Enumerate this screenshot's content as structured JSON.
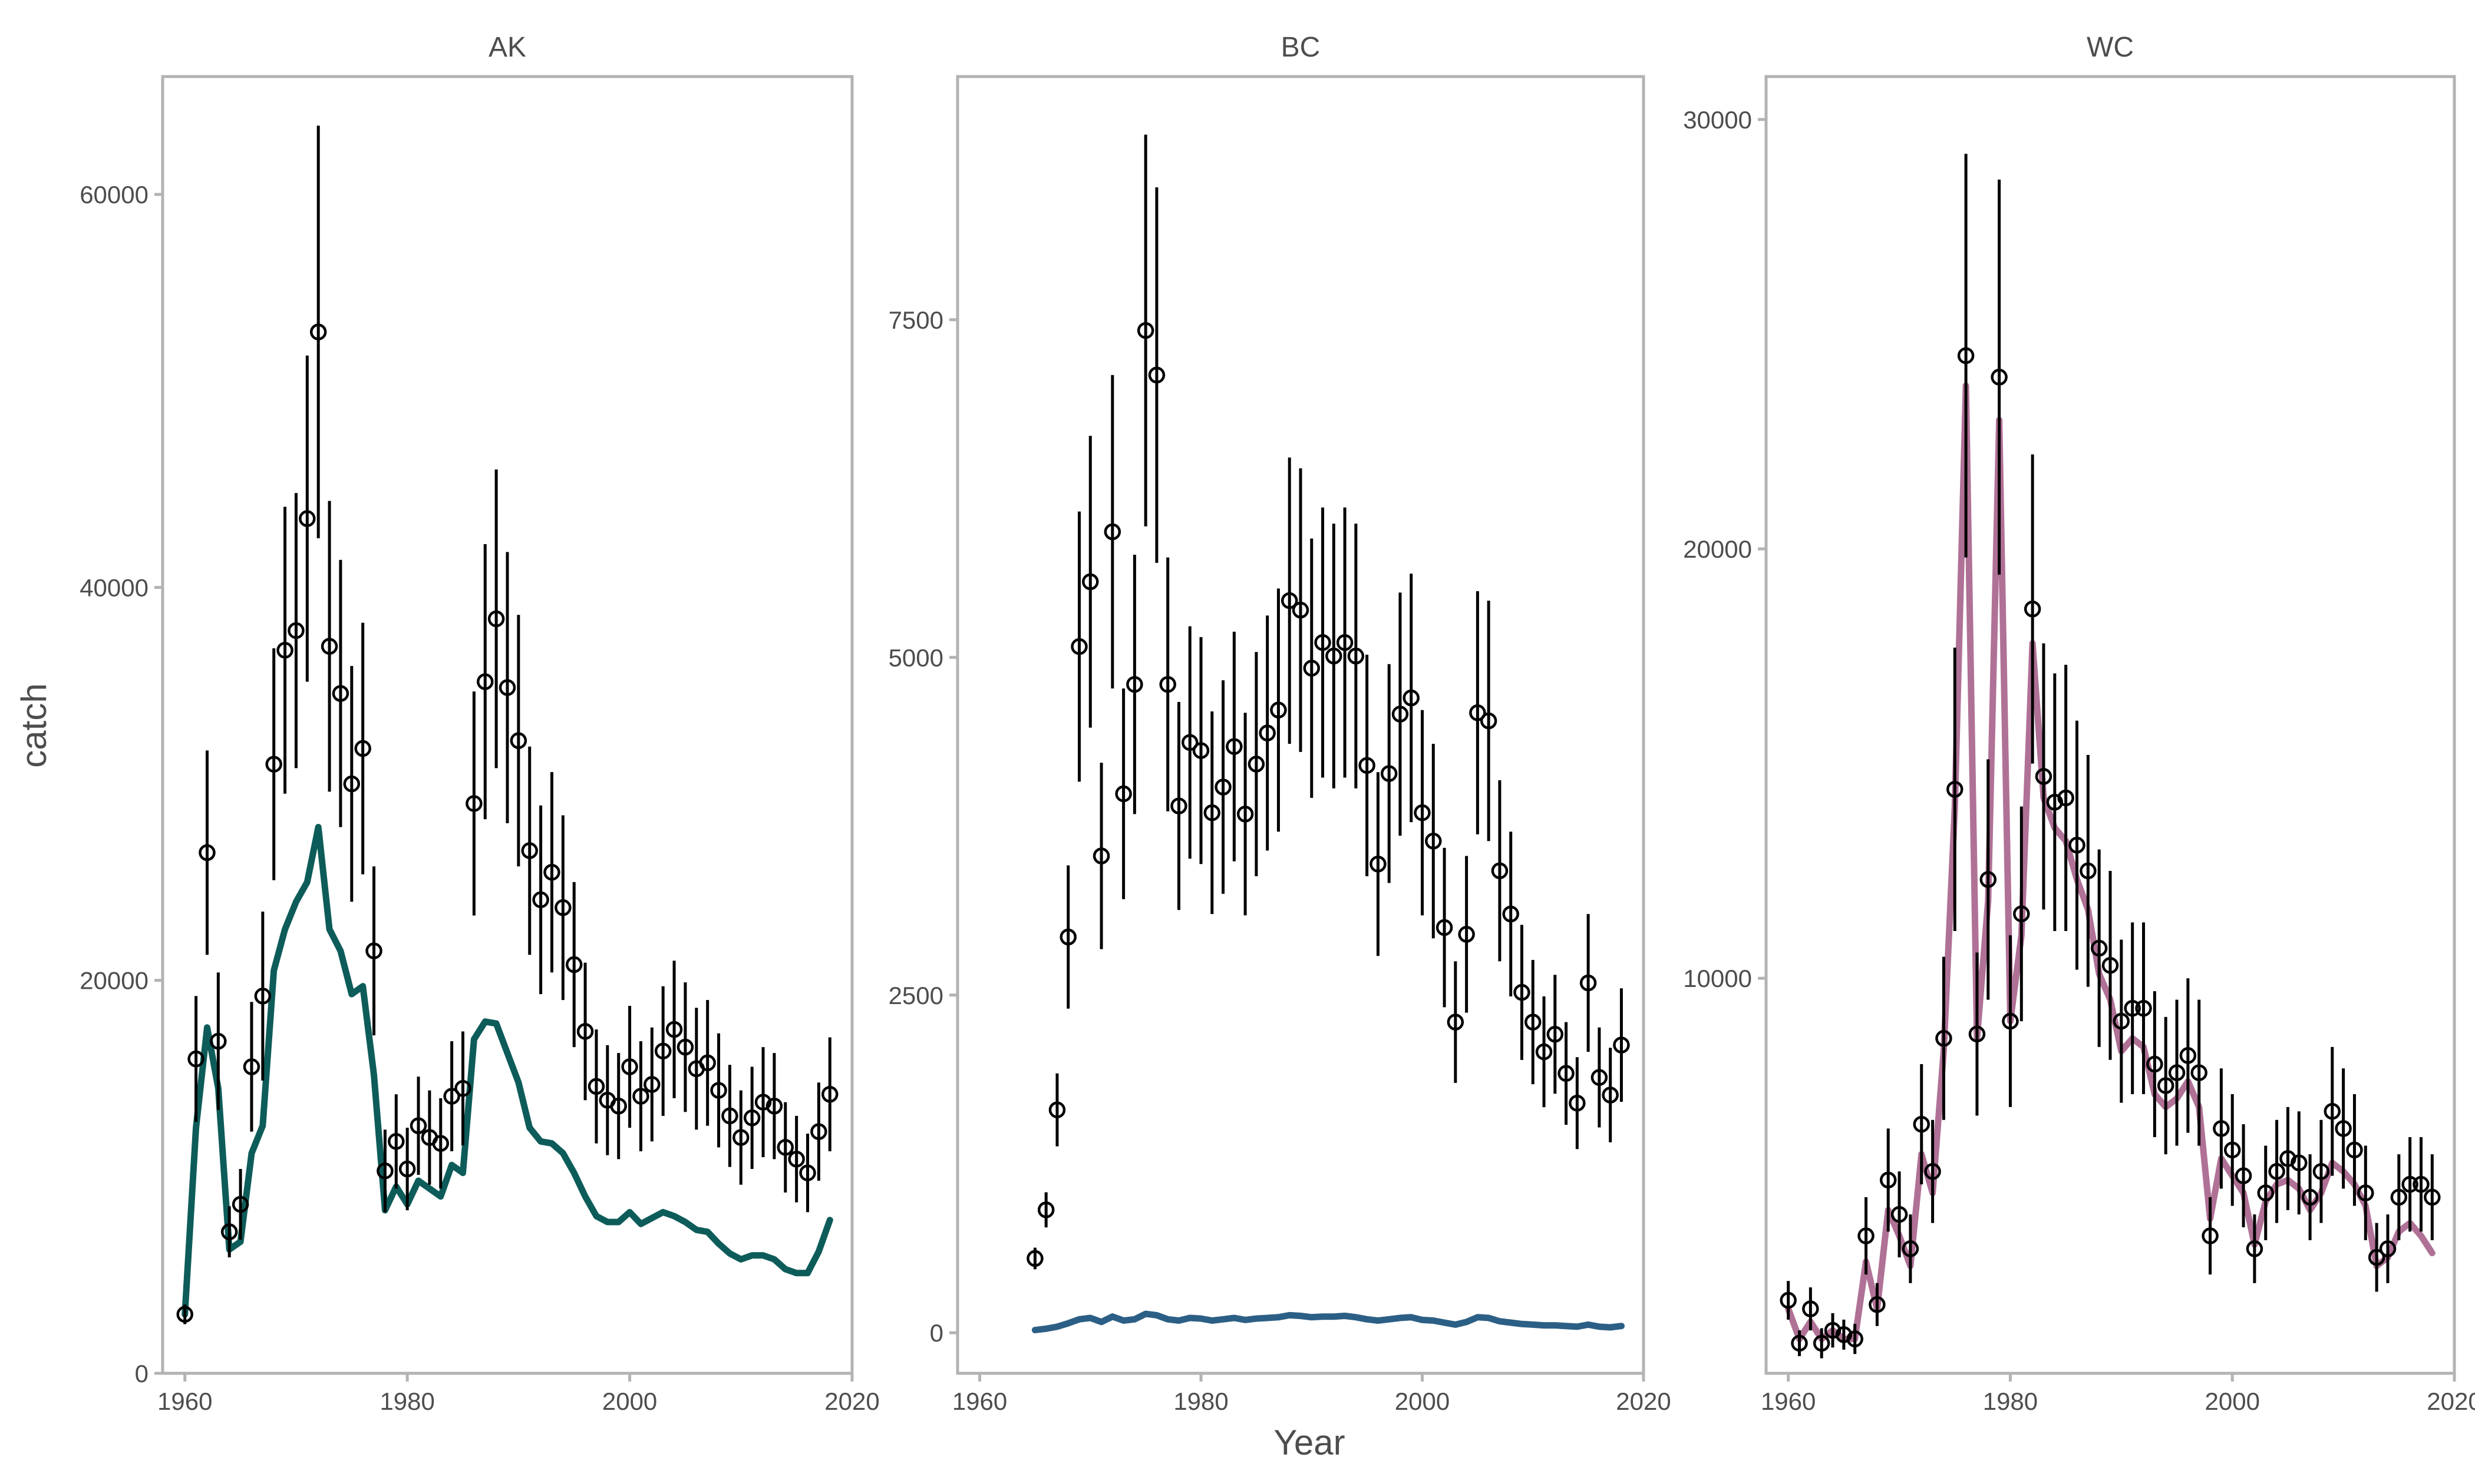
{
  "figure": {
    "xlabel": "Year",
    "ylabel": "catch"
  },
  "chart_data": [
    {
      "type": "line",
      "panel": "AK",
      "title": "AK",
      "xlabel": "Year",
      "ylabel": "catch",
      "xlim": [
        1958,
        2020
      ],
      "ylim": [
        0,
        66000
      ],
      "xticks": [
        1960,
        1980,
        2000,
        2020
      ],
      "yticks": [
        0,
        20000,
        40000,
        60000
      ],
      "ytick_labels": [
        "0",
        "20000",
        "40000",
        "60000"
      ],
      "grid": false,
      "line_color": "#0d5c5a",
      "observed": {
        "x": [
          1960,
          1961,
          1962,
          1963,
          1964,
          1965,
          1966,
          1967,
          1968,
          1969,
          1970,
          1971,
          1972,
          1973,
          1974,
          1975,
          1976,
          1977,
          1978,
          1979,
          1980,
          1981,
          1982,
          1983,
          1984,
          1985,
          1986,
          1987,
          1988,
          1989,
          1990,
          1991,
          1992,
          1993,
          1994,
          1995,
          1996,
          1997,
          1998,
          1999,
          2000,
          2001,
          2002,
          2003,
          2004,
          2005,
          2006,
          2007,
          2008,
          2009,
          2010,
          2011,
          2012,
          2013,
          2014,
          2015,
          2016,
          2017,
          2018
        ],
        "y": [
          3000,
          16000,
          26500,
          16900,
          7200,
          8600,
          15600,
          19200,
          31000,
          36800,
          37800,
          43500,
          53000,
          37000,
          34600,
          30000,
          31800,
          21500,
          10300,
          11800,
          10400,
          12600,
          12000,
          11700,
          14100,
          14500,
          29000,
          35200,
          38400,
          34900,
          32200,
          26600,
          24100,
          25500,
          23700,
          20800,
          17400,
          14600,
          13900,
          13600,
          15600,
          14100,
          14700,
          16400,
          17500,
          16600,
          15500,
          15800,
          14400,
          13100,
          12000,
          13000,
          13800,
          13600,
          11500,
          10900,
          10200,
          12300,
          14200
        ],
        "err": [
          500,
          3200,
          5200,
          3500,
          1300,
          1800,
          3300,
          4300,
          5900,
          7300,
          7000,
          8300,
          10500,
          7400,
          6800,
          6000,
          6400,
          4300,
          2100,
          2400,
          2100,
          2500,
          2400,
          2300,
          2800,
          2900,
          5700,
          7000,
          7600,
          6900,
          6400,
          5300,
          4800,
          5100,
          4700,
          4200,
          3500,
          2900,
          2800,
          2700,
          3100,
          2800,
          2900,
          3300,
          3500,
          3300,
          3100,
          3200,
          2900,
          2600,
          2400,
          2600,
          2800,
          2700,
          2300,
          2200,
          2000,
          2500,
          2900
        ]
      },
      "fitted": {
        "x": [
          1960,
          1961,
          1962,
          1963,
          1964,
          1965,
          1966,
          1967,
          1968,
          1969,
          1970,
          1971,
          1972,
          1973,
          1974,
          1975,
          1976,
          1977,
          1978,
          1979,
          1980,
          1981,
          1982,
          1983,
          1984,
          1985,
          1986,
          1987,
          1988,
          1989,
          1990,
          1991,
          1992,
          1993,
          1994,
          1995,
          1996,
          1997,
          1998,
          1999,
          2000,
          2001,
          2002,
          2003,
          2004,
          2005,
          2006,
          2007,
          2008,
          2009,
          2010,
          2011,
          2012,
          2013,
          2014,
          2015,
          2016,
          2017,
          2018
        ],
        "y": [
          3000,
          12500,
          17600,
          14500,
          6300,
          6700,
          11200,
          12600,
          20500,
          22600,
          24000,
          25000,
          27800,
          22600,
          21500,
          19300,
          19700,
          15200,
          8300,
          9500,
          8600,
          9800,
          9400,
          9000,
          10600,
          10200,
          17000,
          17900,
          17800,
          16300,
          14800,
          12500,
          11800,
          11700,
          11200,
          10200,
          9000,
          8000,
          7700,
          7700,
          8200,
          7600,
          7900,
          8200,
          8000,
          7700,
          7300,
          7200,
          6600,
          6100,
          5800,
          6000,
          6000,
          5800,
          5300,
          5100,
          5100,
          6200,
          7800
        ]
      }
    },
    {
      "type": "line",
      "panel": "BC",
      "title": "BC",
      "xlabel": "Year",
      "ylabel": "",
      "xlim": [
        1958,
        2020
      ],
      "ylim": [
        -300,
        9300
      ],
      "xticks": [
        1960,
        1980,
        2000,
        2020
      ],
      "yticks": [
        0,
        2500,
        5000,
        7500
      ],
      "ytick_labels": [
        "0",
        "2500",
        "5000",
        "7500"
      ],
      "grid": false,
      "line_color": "#2c5f85",
      "observed": {
        "x": [
          1965,
          1966,
          1967,
          1968,
          1969,
          1970,
          1971,
          1972,
          1973,
          1974,
          1975,
          1976,
          1977,
          1978,
          1979,
          1980,
          1981,
          1982,
          1983,
          1984,
          1985,
          1986,
          1987,
          1988,
          1989,
          1990,
          1991,
          1992,
          1993,
          1994,
          1995,
          1996,
          1997,
          1998,
          1999,
          2000,
          2001,
          2002,
          2003,
          2004,
          2005,
          2006,
          2007,
          2008,
          2009,
          2010,
          2011,
          2012,
          2013,
          2014,
          2015,
          2016,
          2017,
          2018
        ],
        "y": [
          550,
          910,
          1650,
          2930,
          5080,
          5560,
          3530,
          5930,
          3990,
          4800,
          7420,
          7090,
          4800,
          3900,
          4370,
          4310,
          3850,
          4040,
          4340,
          3840,
          4210,
          4440,
          4610,
          5420,
          5350,
          4920,
          5110,
          5010,
          5110,
          5010,
          4200,
          3470,
          4140,
          4580,
          4700,
          3850,
          3640,
          3000,
          2300,
          2950,
          4590,
          4530,
          3420,
          3100,
          2520,
          2300,
          2080,
          2210,
          1920,
          1700,
          2590,
          1890,
          1760,
          2130
        ],
        "err": [
          80,
          130,
          270,
          530,
          1000,
          1080,
          690,
          1160,
          780,
          960,
          1450,
          1390,
          940,
          770,
          860,
          840,
          750,
          790,
          850,
          750,
          830,
          870,
          900,
          1060,
          1050,
          960,
          1000,
          980,
          1000,
          980,
          820,
          680,
          810,
          900,
          920,
          760,
          720,
          590,
          450,
          580,
          900,
          890,
          670,
          610,
          500,
          460,
          410,
          440,
          380,
          340,
          510,
          370,
          350,
          420
        ]
      },
      "fitted": {
        "x": [
          1965,
          1966,
          1967,
          1968,
          1969,
          1970,
          1971,
          1972,
          1973,
          1974,
          1975,
          1976,
          1977,
          1978,
          1979,
          1980,
          1981,
          1982,
          1983,
          1984,
          1985,
          1986,
          1987,
          1988,
          1989,
          1990,
          1991,
          1992,
          1993,
          1994,
          1995,
          1996,
          1997,
          1998,
          1999,
          2000,
          2001,
          2002,
          2003,
          2004,
          2005,
          2006,
          2007,
          2008,
          2009,
          2010,
          2011,
          2012,
          2013,
          2014,
          2015,
          2016,
          2017,
          2018
        ],
        "y": [
          20,
          30,
          45,
          70,
          100,
          110,
          80,
          120,
          90,
          100,
          140,
          130,
          100,
          90,
          110,
          105,
          90,
          100,
          110,
          95,
          105,
          110,
          115,
          130,
          125,
          115,
          120,
          120,
          125,
          115,
          100,
          90,
          100,
          110,
          115,
          95,
          90,
          75,
          60,
          80,
          115,
          110,
          85,
          75,
          65,
          60,
          55,
          55,
          50,
          45,
          60,
          45,
          40,
          50
        ]
      }
    },
    {
      "type": "line",
      "panel": "WC",
      "title": "WC",
      "xlabel": "Year",
      "ylabel": "",
      "xlim": [
        1958,
        2020
      ],
      "ylim": [
        800,
        31000
      ],
      "xticks": [
        1960,
        1980,
        2000,
        2020
      ],
      "yticks": [
        10000,
        20000,
        30000
      ],
      "ytick_labels": [
        "10000",
        "20000",
        "30000"
      ],
      "grid": false,
      "line_color": "#b07196",
      "observed": {
        "x": [
          1960,
          1961,
          1962,
          1963,
          1964,
          1965,
          1966,
          1967,
          1968,
          1969,
          1970,
          1971,
          1972,
          1973,
          1974,
          1975,
          1976,
          1977,
          1978,
          1979,
          1980,
          1981,
          1982,
          1983,
          1984,
          1985,
          1986,
          1987,
          1988,
          1989,
          1990,
          1991,
          1992,
          1993,
          1994,
          1995,
          1996,
          1997,
          1998,
          1999,
          2000,
          2001,
          2002,
          2003,
          2004,
          2005,
          2006,
          2007,
          2008,
          2009,
          2010,
          2011,
          2012,
          2013,
          2014,
          2015,
          2016,
          2017,
          2018
        ],
        "y": [
          2500,
          1500,
          2300,
          1500,
          1800,
          1700,
          1600,
          4000,
          2400,
          5300,
          4500,
          3700,
          6600,
          5500,
          8600,
          14400,
          24500,
          8700,
          12300,
          24000,
          9000,
          11500,
          18600,
          14700,
          14100,
          14200,
          13100,
          12500,
          10700,
          10300,
          9000,
          9300,
          9300,
          8000,
          7500,
          7800,
          8200,
          7800,
          4000,
          6500,
          6000,
          5400,
          3700,
          5000,
          5500,
          5800,
          5700,
          4900,
          5500,
          6900,
          6500,
          6000,
          5000,
          3500,
          3700,
          4900,
          5200,
          5200,
          4900
        ],
        "err": [
          450,
          300,
          500,
          350,
          400,
          350,
          350,
          900,
          500,
          1200,
          1000,
          800,
          1400,
          1200,
          1900,
          3300,
          4700,
          1900,
          2800,
          4600,
          2000,
          2500,
          3600,
          3100,
          3000,
          3100,
          2900,
          2700,
          2300,
          2200,
          1900,
          2000,
          2000,
          1700,
          1600,
          1700,
          1800,
          1700,
          900,
          1400,
          1300,
          1200,
          800,
          1100,
          1200,
          1200,
          1200,
          1000,
          1200,
          1500,
          1400,
          1300,
          1100,
          800,
          800,
          1000,
          1100,
          1100,
          1000
        ]
      },
      "fitted": {
        "x": [
          1960,
          1961,
          1962,
          1963,
          1964,
          1965,
          1966,
          1967,
          1968,
          1969,
          1970,
          1971,
          1972,
          1973,
          1974,
          1975,
          1976,
          1977,
          1978,
          1979,
          1980,
          1981,
          1982,
          1983,
          1984,
          1985,
          1986,
          1987,
          1988,
          1989,
          1990,
          1991,
          1992,
          1993,
          1994,
          1995,
          1996,
          1997,
          1998,
          1999,
          2000,
          2001,
          2002,
          2003,
          2004,
          2005,
          2006,
          2007,
          2008,
          2009,
          2010,
          2011,
          2012,
          2013,
          2014,
          2015,
          2016,
          2017,
          2018
        ],
        "y": [
          2300,
          1600,
          2000,
          1600,
          1800,
          1600,
          1600,
          3400,
          2300,
          4600,
          4000,
          3300,
          5900,
          5000,
          8300,
          14000,
          23800,
          8600,
          11800,
          23000,
          9000,
          11000,
          17800,
          14200,
          13500,
          13200,
          12300,
          11600,
          10100,
          9500,
          8300,
          8600,
          8400,
          7300,
          7000,
          7200,
          7600,
          7000,
          4400,
          5800,
          5400,
          5000,
          3800,
          4800,
          5200,
          5300,
          5100,
          4600,
          5000,
          5700,
          5500,
          5200,
          4700,
          3300,
          3500,
          4100,
          4300,
          4000,
          3600
        ]
      }
    }
  ]
}
